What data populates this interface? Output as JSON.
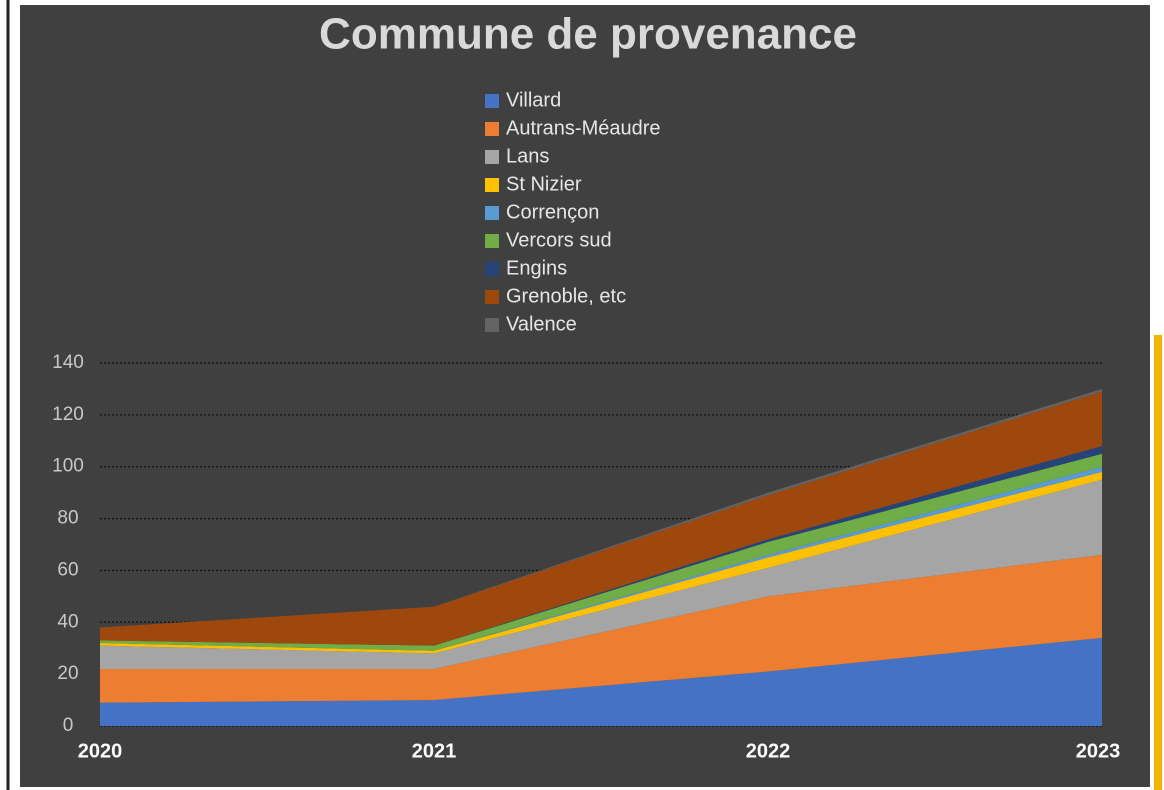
{
  "chart_data": {
    "type": "stacked_area",
    "title": "Commune de provenance",
    "categories": [
      "2020",
      "2021",
      "2022",
      "2023"
    ],
    "series": [
      {
        "name": "Villard",
        "color": "#4472c4",
        "values": [
          9,
          10,
          21,
          34
        ]
      },
      {
        "name": "Autrans-Méaudre",
        "color": "#ed7d31",
        "values": [
          13,
          12,
          29,
          32
        ]
      },
      {
        "name": "Lans",
        "color": "#a5a5a5",
        "values": [
          9,
          6,
          11,
          29
        ]
      },
      {
        "name": "St Nizier",
        "color": "#ffc000",
        "values": [
          1,
          1,
          4,
          3
        ]
      },
      {
        "name": "Corrençon",
        "color": "#5b9bd5",
        "values": [
          0,
          0,
          1,
          2
        ]
      },
      {
        "name": "Vercors sud",
        "color": "#70ad47",
        "values": [
          1,
          2,
          5,
          5
        ]
      },
      {
        "name": "Engins",
        "color": "#264478",
        "values": [
          0,
          0,
          1,
          3
        ]
      },
      {
        "name": "Grenoble, etc",
        "color": "#9e480e",
        "values": [
          5,
          15,
          17,
          21
        ]
      },
      {
        "name": "Valence",
        "color": "#636363",
        "values": [
          0,
          0,
          1,
          1
        ]
      }
    ],
    "ylim": [
      0,
      140
    ],
    "yticks": [
      0,
      20,
      40,
      60,
      80,
      100,
      120,
      140
    ],
    "grid": true,
    "legend": "top"
  }
}
